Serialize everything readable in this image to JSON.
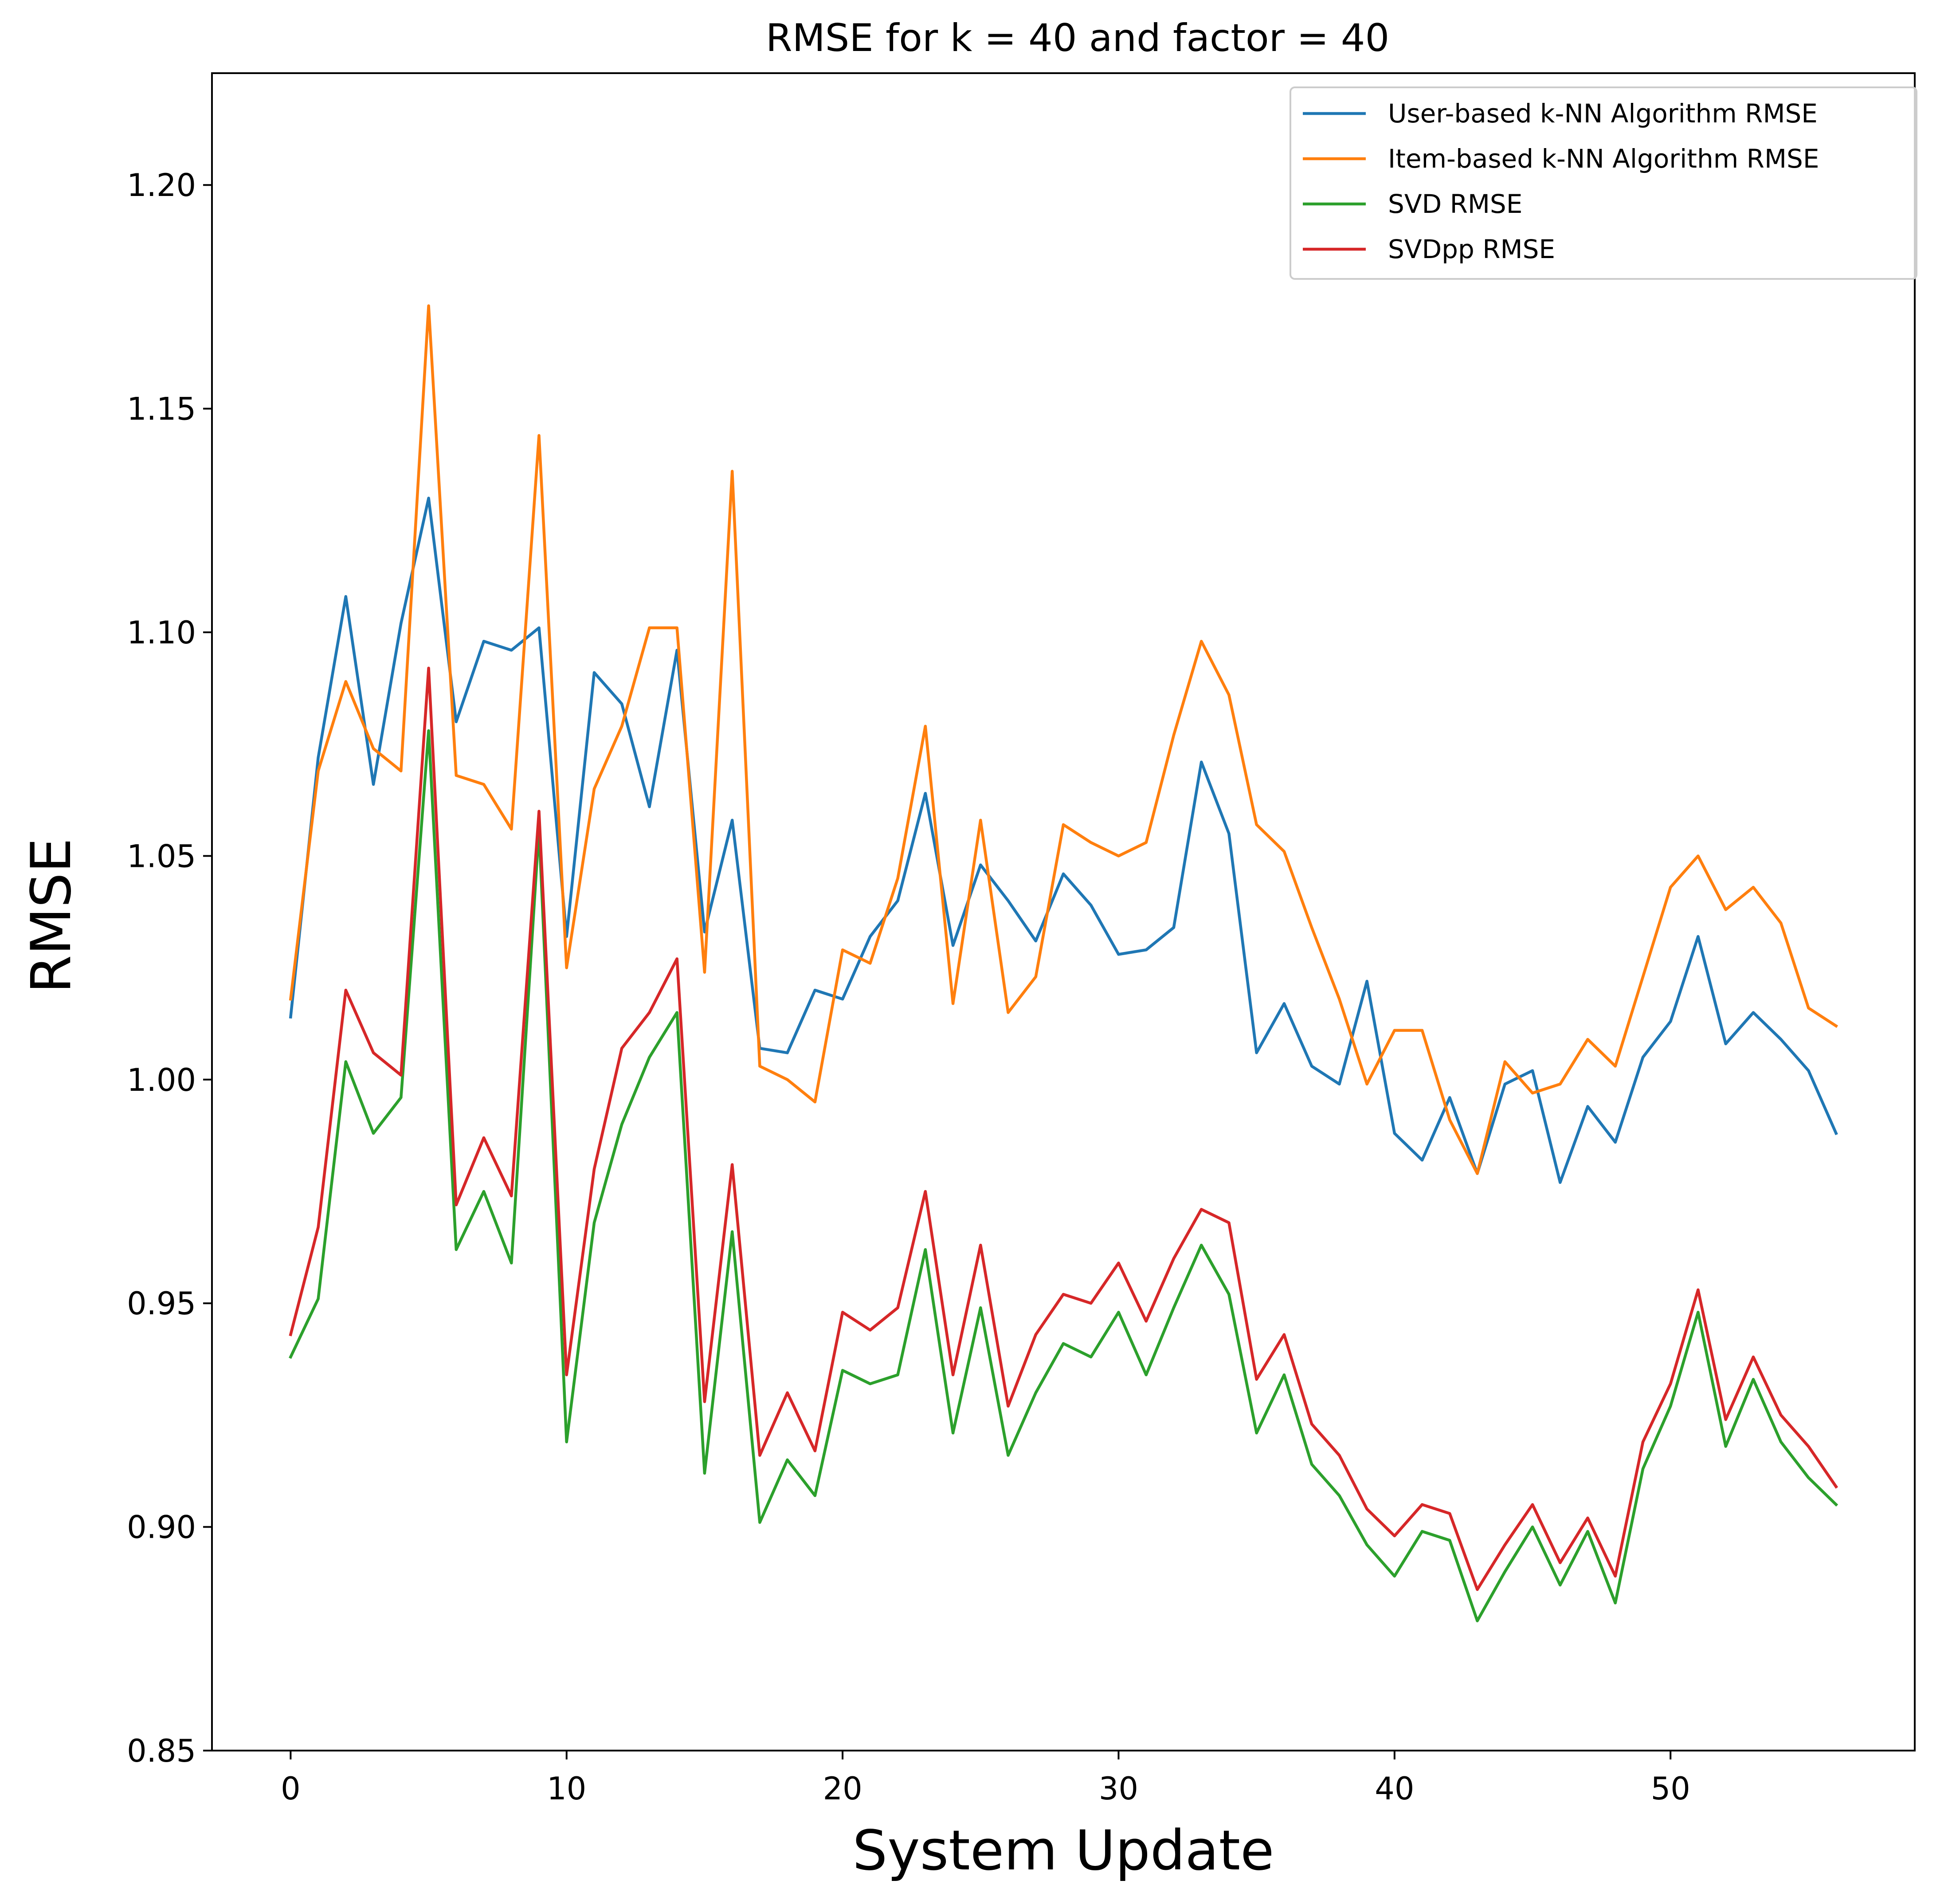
{
  "chart_data": {
    "type": "line",
    "title": "RMSE for k = 40 and factor = 40",
    "xlabel": "System Update",
    "ylabel": "RMSE",
    "xlim": [
      -2.85,
      58.85
    ],
    "ylim": [
      0.85,
      1.225
    ],
    "xticks": [
      0,
      10,
      20,
      30,
      40,
      50
    ],
    "xtick_labels": [
      "0",
      "10",
      "20",
      "30",
      "40",
      "50"
    ],
    "yticks": [
      0.85,
      0.9,
      0.95,
      1.0,
      1.05,
      1.1,
      1.15,
      1.2
    ],
    "ytick_labels": [
      "0.85",
      "0.90",
      "0.95",
      "1.00",
      "1.05",
      "1.10",
      "1.15",
      "1.20"
    ],
    "grid": false,
    "legend_position": "top-right",
    "x": [
      0,
      1,
      2,
      3,
      4,
      5,
      6,
      7,
      8,
      9,
      10,
      11,
      12,
      13,
      14,
      15,
      16,
      17,
      18,
      19,
      20,
      21,
      22,
      23,
      24,
      25,
      26,
      27,
      28,
      29,
      30,
      31,
      32,
      33,
      34,
      35,
      36,
      37,
      38,
      39,
      40,
      41,
      42,
      43,
      44,
      45,
      46,
      47,
      48,
      49,
      50,
      51,
      52,
      53,
      54,
      55,
      56
    ],
    "series": [
      {
        "name": "User-based k-NN Algorithm RMSE",
        "color": "#1f77b4",
        "values": [
          1.014,
          1.072,
          1.108,
          1.066,
          1.102,
          1.13,
          1.08,
          1.098,
          1.096,
          1.101,
          1.032,
          1.091,
          1.084,
          1.061,
          1.096,
          1.033,
          1.058,
          1.007,
          1.006,
          1.02,
          1.018,
          1.032,
          1.04,
          1.064,
          1.03,
          1.048,
          1.04,
          1.031,
          1.046,
          1.039,
          1.028,
          1.029,
          1.034,
          1.071,
          1.055,
          1.006,
          1.017,
          1.003,
          0.999,
          1.022,
          0.988,
          0.982,
          0.996,
          0.979,
          0.999,
          1.002,
          0.977,
          0.994,
          0.986,
          1.005,
          1.013,
          1.032,
          1.008,
          1.015,
          1.009,
          1.002,
          0.988
        ]
      },
      {
        "name": "Item-based k-NN Algorithm RMSE",
        "color": "#ff7f0e",
        "values": [
          1.018,
          1.069,
          1.089,
          1.074,
          1.069,
          1.173,
          1.068,
          1.066,
          1.056,
          1.144,
          1.025,
          1.065,
          1.079,
          1.101,
          1.101,
          1.024,
          1.136,
          1.003,
          1.0,
          0.995,
          1.029,
          1.026,
          1.045,
          1.079,
          1.017,
          1.058,
          1.015,
          1.023,
          1.057,
          1.053,
          1.05,
          1.053,
          1.077,
          1.098,
          1.086,
          1.057,
          1.051,
          1.034,
          1.018,
          0.999,
          1.011,
          1.011,
          0.991,
          0.979,
          1.004,
          0.997,
          0.999,
          1.009,
          1.003,
          1.023,
          1.043,
          1.05,
          1.038,
          1.043,
          1.035,
          1.016,
          1.012
        ]
      },
      {
        "name": "SVD RMSE",
        "color": "#2ca02c",
        "values": [
          0.938,
          0.951,
          1.004,
          0.988,
          0.996,
          1.078,
          0.962,
          0.975,
          0.959,
          1.056,
          0.919,
          0.968,
          0.99,
          1.005,
          1.015,
          0.912,
          0.966,
          0.901,
          0.915,
          0.907,
          0.935,
          0.932,
          0.934,
          0.962,
          0.921,
          0.949,
          0.916,
          0.93,
          0.941,
          0.938,
          0.948,
          0.934,
          0.949,
          0.963,
          0.952,
          0.921,
          0.934,
          0.914,
          0.907,
          0.896,
          0.889,
          0.899,
          0.897,
          0.879,
          0.89,
          0.9,
          0.887,
          0.899,
          0.883,
          0.913,
          0.927,
          0.948,
          0.918,
          0.933,
          0.919,
          0.911,
          0.905
        ]
      },
      {
        "name": "SVDpp RMSE",
        "color": "#d62728",
        "values": [
          0.943,
          0.967,
          1.02,
          1.006,
          1.001,
          1.092,
          0.972,
          0.987,
          0.974,
          1.06,
          0.934,
          0.98,
          1.007,
          1.015,
          1.027,
          0.928,
          0.981,
          0.916,
          0.93,
          0.917,
          0.948,
          0.944,
          0.949,
          0.975,
          0.934,
          0.963,
          0.927,
          0.943,
          0.952,
          0.95,
          0.959,
          0.946,
          0.96,
          0.971,
          0.968,
          0.933,
          0.943,
          0.923,
          0.916,
          0.904,
          0.898,
          0.905,
          0.903,
          0.886,
          0.896,
          0.905,
          0.892,
          0.902,
          0.889,
          0.919,
          0.932,
          0.953,
          0.924,
          0.938,
          0.925,
          0.918,
          0.909
        ]
      }
    ]
  }
}
